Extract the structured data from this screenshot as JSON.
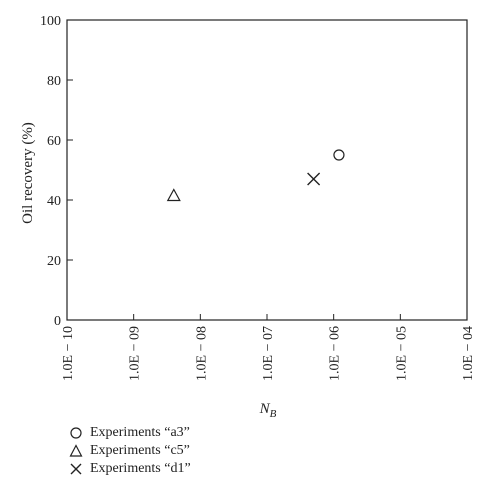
{
  "chart_data": {
    "type": "scatter",
    "xscale": "log",
    "xlabel_main": "N",
    "xlabel_sub": "B",
    "ylabel": "Oil recovery (%)",
    "xlim": [
      1e-10,
      0.0001
    ],
    "ylim": [
      0,
      100
    ],
    "x_ticks": [
      1e-10,
      1e-09,
      1e-08,
      1e-07,
      1e-06,
      1e-05,
      0.0001
    ],
    "x_tick_labels": [
      "1.0E − 10",
      "1.0E − 09",
      "1.0E − 08",
      "1.0E − 07",
      "1.0E − 06",
      "1.0E − 05",
      "1.0E − 04"
    ],
    "y_ticks": [
      0,
      20,
      40,
      60,
      80,
      100
    ],
    "y_tick_labels": [
      "0",
      "20",
      "40",
      "60",
      "80",
      "100"
    ],
    "grid": false,
    "legend_position": "bottom-left",
    "series": [
      {
        "name": "Experiments “a3”",
        "marker": "circle",
        "points": [
          {
            "x": 1.2e-06,
            "y": 55
          }
        ]
      },
      {
        "name": "Experiments “c5”",
        "marker": "triangle",
        "points": [
          {
            "x": 4e-09,
            "y": 41.5
          }
        ]
      },
      {
        "name": "Experiments “d1”",
        "marker": "x",
        "points": [
          {
            "x": 5e-07,
            "y": 47
          }
        ]
      }
    ]
  }
}
